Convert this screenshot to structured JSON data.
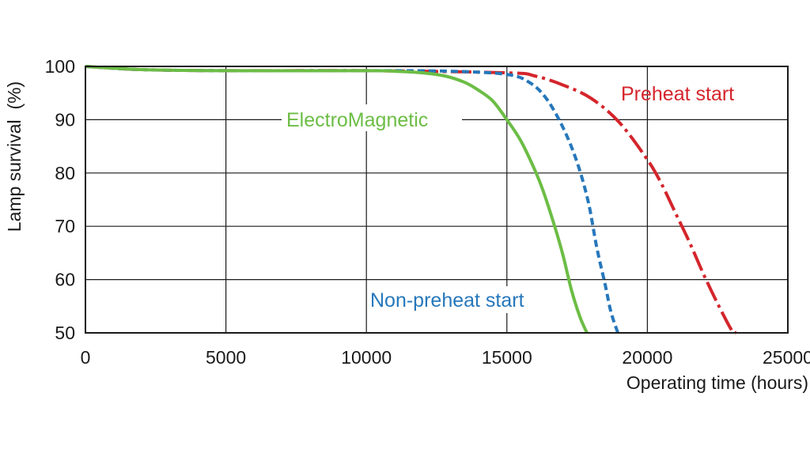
{
  "chart_data": {
    "type": "line",
    "title": "",
    "xlabel": "Operating time (hours)",
    "ylabel": "Lamp survival  (%)",
    "xlim": [
      0,
      25000
    ],
    "ylim": [
      50,
      100
    ],
    "x_ticks": [
      "0",
      "5000",
      "10000",
      "15000",
      "20000",
      "25000"
    ],
    "y_ticks": [
      "50",
      "60",
      "70",
      "80",
      "90",
      "100"
    ],
    "grid": true,
    "legend": "inline labels",
    "series": [
      {
        "name": "ElectroMagnetic",
        "color": "#6cbd45",
        "dash": "solid",
        "points": [
          [
            0,
            100
          ],
          [
            2000,
            99.4
          ],
          [
            5000,
            99.2
          ],
          [
            10000,
            99.2
          ],
          [
            11000,
            99.1
          ],
          [
            12000,
            98.8
          ],
          [
            12800,
            98.2
          ],
          [
            13500,
            97
          ],
          [
            14000,
            95.5
          ],
          [
            14500,
            93.5
          ],
          [
            15000,
            90
          ],
          [
            15500,
            86
          ],
          [
            16000,
            80.5
          ],
          [
            16300,
            76.5
          ],
          [
            16700,
            70
          ],
          [
            17000,
            64.5
          ],
          [
            17300,
            58
          ],
          [
            17600,
            53
          ],
          [
            17850,
            50
          ]
        ]
      },
      {
        "name": "Non-preheat start",
        "color": "#2677bb",
        "dash": "dashed",
        "points": [
          [
            0,
            100
          ],
          [
            2000,
            99.4
          ],
          [
            5000,
            99.2
          ],
          [
            10000,
            99.2
          ],
          [
            13000,
            99.1
          ],
          [
            15000,
            98.5
          ],
          [
            15800,
            97
          ],
          [
            16400,
            94
          ],
          [
            17000,
            88.5
          ],
          [
            17500,
            82
          ],
          [
            17900,
            74.5
          ],
          [
            18200,
            66
          ],
          [
            18500,
            59
          ],
          [
            18700,
            54
          ],
          [
            18950,
            50
          ]
        ]
      },
      {
        "name": "Preheat start",
        "color": "#d4252c",
        "dash": "dash-dot",
        "points": [
          [
            0,
            100
          ],
          [
            2000,
            99.4
          ],
          [
            5000,
            99.2
          ],
          [
            10000,
            99.2
          ],
          [
            15000,
            98.8
          ],
          [
            16000,
            98.2
          ],
          [
            17000,
            96.5
          ],
          [
            18000,
            94
          ],
          [
            19000,
            89.5
          ],
          [
            20000,
            82.5
          ],
          [
            20500,
            78
          ],
          [
            21000,
            72.5
          ],
          [
            21500,
            67
          ],
          [
            22000,
            61
          ],
          [
            22500,
            55.5
          ],
          [
            23000,
            50.5
          ],
          [
            23150,
            50
          ]
        ]
      }
    ]
  }
}
